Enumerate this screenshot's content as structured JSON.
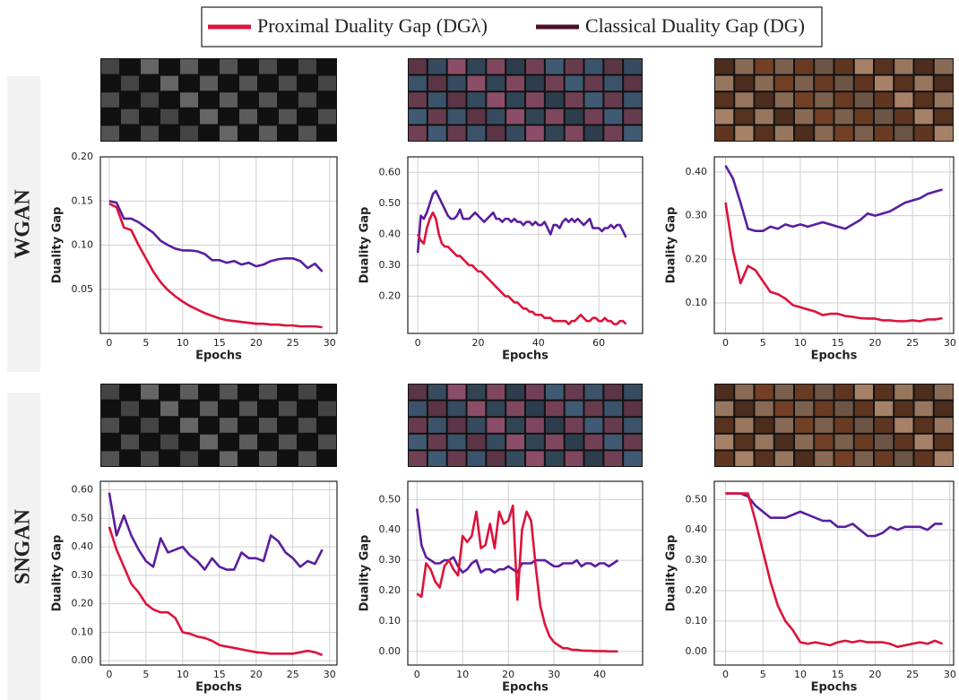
{
  "legend": [
    {
      "label": "Proximal Duality Gap (DGλ)",
      "color": "#dc143c"
    },
    {
      "label": "Classical Duality Gap (DG)",
      "color": "#4a0d2a"
    }
  ],
  "rows": [
    "WGAN",
    "SNGAN"
  ],
  "chart_data": [
    {
      "type": "line",
      "x_label": "Epochs",
      "y_label": "Duality Gap",
      "grid": true,
      "x": [
        0,
        1,
        2,
        3,
        4,
        5,
        6,
        7,
        8,
        9,
        10,
        11,
        12,
        13,
        14,
        15,
        16,
        17,
        18,
        19,
        20,
        21,
        22,
        23,
        24,
        25,
        26,
        27,
        28,
        29
      ],
      "xlim": [
        -1.2,
        31
      ],
      "xticks": [
        0,
        5,
        10,
        15,
        20,
        25,
        30
      ],
      "ylim": [
        0,
        0.2
      ],
      "yticks": [
        {
          "value": 0.05,
          "label": "0.05"
        },
        {
          "value": 0.1,
          "label": "0.10"
        },
        {
          "value": 0.15,
          "label": "0.15"
        },
        {
          "value": 0.2,
          "label": "0.20"
        }
      ],
      "series": [
        {
          "color": "#dc143c",
          "values": [
            0.147,
            0.143,
            0.12,
            0.117,
            0.1,
            0.085,
            0.07,
            0.058,
            0.049,
            0.042,
            0.036,
            0.031,
            0.027,
            0.023,
            0.02,
            0.017,
            0.015,
            0.014,
            0.013,
            0.012,
            0.011,
            0.011,
            0.01,
            0.01,
            0.009,
            0.009,
            0.008,
            0.008,
            0.008,
            0.007
          ]
        },
        {
          "color": "#5a1e9e",
          "values": [
            0.15,
            0.148,
            0.13,
            0.13,
            0.126,
            0.12,
            0.114,
            0.105,
            0.1,
            0.096,
            0.094,
            0.094,
            0.093,
            0.09,
            0.083,
            0.083,
            0.08,
            0.082,
            0.078,
            0.08,
            0.076,
            0.078,
            0.082,
            0.084,
            0.085,
            0.085,
            0.082,
            0.074,
            0.079,
            0.07
          ]
        }
      ]
    },
    {
      "type": "line",
      "x_label": "Epochs",
      "y_label": "Duality Gap",
      "grid": true,
      "x": [
        0,
        1,
        2,
        3,
        4,
        5,
        6,
        7,
        8,
        9,
        10,
        11,
        12,
        13,
        14,
        15,
        16,
        17,
        18,
        19,
        20,
        21,
        22,
        23,
        24,
        25,
        26,
        27,
        28,
        29,
        30,
        31,
        32,
        33,
        34,
        35,
        36,
        37,
        38,
        39,
        40,
        41,
        42,
        43,
        44,
        45,
        46,
        47,
        48,
        49,
        50,
        51,
        52,
        53,
        54,
        55,
        56,
        57,
        58,
        59,
        60,
        61,
        62,
        63,
        64,
        65,
        66,
        67,
        68,
        69
      ],
      "xlim": [
        -3.3,
        74.5
      ],
      "xticks": [
        0,
        20,
        40,
        60
      ],
      "ylim": [
        0.08,
        0.65
      ],
      "yticks": [
        {
          "value": 0.2,
          "label": "0.20"
        },
        {
          "value": 0.3,
          "label": "0.30"
        },
        {
          "value": 0.4,
          "label": "0.40"
        },
        {
          "value": 0.5,
          "label": "0.50"
        },
        {
          "value": 0.6,
          "label": "0.60"
        }
      ],
      "series": [
        {
          "color": "#dc143c",
          "values": [
            0.4,
            0.38,
            0.37,
            0.42,
            0.45,
            0.47,
            0.45,
            0.4,
            0.37,
            0.36,
            0.36,
            0.35,
            0.34,
            0.33,
            0.33,
            0.32,
            0.31,
            0.3,
            0.3,
            0.29,
            0.28,
            0.28,
            0.27,
            0.26,
            0.25,
            0.24,
            0.23,
            0.22,
            0.21,
            0.2,
            0.2,
            0.19,
            0.18,
            0.18,
            0.17,
            0.16,
            0.16,
            0.15,
            0.15,
            0.14,
            0.14,
            0.14,
            0.13,
            0.13,
            0.13,
            0.12,
            0.12,
            0.12,
            0.12,
            0.12,
            0.11,
            0.12,
            0.12,
            0.13,
            0.14,
            0.13,
            0.12,
            0.12,
            0.13,
            0.13,
            0.12,
            0.12,
            0.13,
            0.12,
            0.12,
            0.11,
            0.11,
            0.12,
            0.12,
            0.11
          ]
        },
        {
          "color": "#5a1e9e",
          "values": [
            0.34,
            0.46,
            0.45,
            0.47,
            0.5,
            0.53,
            0.54,
            0.52,
            0.5,
            0.48,
            0.46,
            0.45,
            0.45,
            0.46,
            0.48,
            0.45,
            0.45,
            0.45,
            0.46,
            0.47,
            0.46,
            0.45,
            0.44,
            0.45,
            0.46,
            0.47,
            0.45,
            0.45,
            0.44,
            0.45,
            0.45,
            0.44,
            0.45,
            0.44,
            0.44,
            0.43,
            0.44,
            0.44,
            0.43,
            0.44,
            0.43,
            0.43,
            0.44,
            0.42,
            0.4,
            0.43,
            0.43,
            0.42,
            0.44,
            0.45,
            0.44,
            0.45,
            0.44,
            0.45,
            0.44,
            0.43,
            0.44,
            0.45,
            0.42,
            0.42,
            0.42,
            0.41,
            0.42,
            0.42,
            0.43,
            0.42,
            0.43,
            0.43,
            0.41,
            0.39
          ]
        }
      ]
    },
    {
      "type": "line",
      "x_label": "Epochs",
      "y_label": "Duality Gap",
      "grid": true,
      "x": [
        0,
        1,
        2,
        3,
        4,
        5,
        6,
        7,
        8,
        9,
        10,
        11,
        12,
        13,
        14,
        15,
        16,
        17,
        18,
        19,
        20,
        21,
        22,
        23,
        24,
        25,
        26,
        27,
        28,
        29
      ],
      "xlim": [
        -1.5,
        30.5
      ],
      "xticks": [
        0,
        5,
        10,
        15,
        20,
        25,
        30
      ],
      "ylim": [
        0.03,
        0.435
      ],
      "yticks": [
        {
          "value": 0.1,
          "label": "0.10"
        },
        {
          "value": 0.2,
          "label": "0.20"
        },
        {
          "value": 0.3,
          "label": "0.30"
        },
        {
          "value": 0.4,
          "label": "0.40"
        }
      ],
      "series": [
        {
          "color": "#dc143c",
          "values": [
            0.33,
            0.22,
            0.145,
            0.185,
            0.175,
            0.15,
            0.125,
            0.12,
            0.11,
            0.095,
            0.09,
            0.085,
            0.08,
            0.072,
            0.075,
            0.075,
            0.07,
            0.068,
            0.065,
            0.064,
            0.064,
            0.06,
            0.06,
            0.058,
            0.058,
            0.06,
            0.058,
            0.062,
            0.062,
            0.065
          ]
        },
        {
          "color": "#5a1e9e",
          "values": [
            0.415,
            0.385,
            0.33,
            0.27,
            0.265,
            0.265,
            0.275,
            0.27,
            0.28,
            0.275,
            0.28,
            0.275,
            0.28,
            0.285,
            0.28,
            0.275,
            0.27,
            0.28,
            0.29,
            0.305,
            0.3,
            0.305,
            0.31,
            0.32,
            0.33,
            0.335,
            0.34,
            0.35,
            0.355,
            0.36
          ]
        }
      ]
    },
    {
      "type": "line",
      "x_label": "Epochs",
      "y_label": "Duality Gap",
      "grid": true,
      "x": [
        0,
        1,
        2,
        3,
        4,
        5,
        6,
        7,
        8,
        9,
        10,
        11,
        12,
        13,
        14,
        15,
        16,
        17,
        18,
        19,
        20,
        21,
        22,
        23,
        24,
        25,
        26,
        27,
        28,
        29
      ],
      "xlim": [
        -1.2,
        31
      ],
      "xticks": [
        0,
        5,
        10,
        15,
        20,
        25,
        30
      ],
      "ylim": [
        -0.015,
        0.63
      ],
      "yticks": [
        {
          "value": 0,
          "label": "0.00"
        },
        {
          "value": 0.1,
          "label": "0.10"
        },
        {
          "value": 0.2,
          "label": "0.20"
        },
        {
          "value": 0.3,
          "label": "0.30"
        },
        {
          "value": 0.4,
          "label": "0.40"
        },
        {
          "value": 0.5,
          "label": "0.50"
        },
        {
          "value": 0.6,
          "label": "0.60"
        }
      ],
      "series": [
        {
          "color": "#dc143c",
          "values": [
            0.47,
            0.39,
            0.33,
            0.27,
            0.24,
            0.2,
            0.18,
            0.17,
            0.17,
            0.15,
            0.1,
            0.095,
            0.085,
            0.08,
            0.07,
            0.055,
            0.05,
            0.045,
            0.04,
            0.035,
            0.03,
            0.028,
            0.025,
            0.025,
            0.025,
            0.025,
            0.03,
            0.035,
            0.03,
            0.02
          ]
        },
        {
          "color": "#5a1e9e",
          "values": [
            0.59,
            0.44,
            0.51,
            0.44,
            0.39,
            0.35,
            0.33,
            0.43,
            0.38,
            0.39,
            0.4,
            0.37,
            0.35,
            0.32,
            0.36,
            0.33,
            0.32,
            0.32,
            0.38,
            0.36,
            0.36,
            0.35,
            0.44,
            0.42,
            0.38,
            0.36,
            0.33,
            0.35,
            0.34,
            0.39
          ]
        }
      ]
    },
    {
      "type": "line",
      "x_label": "Epochs",
      "y_label": "Duality Gap",
      "grid": true,
      "x": [
        0,
        1,
        2,
        3,
        4,
        5,
        6,
        7,
        8,
        9,
        10,
        11,
        12,
        13,
        14,
        15,
        16,
        17,
        18,
        19,
        20,
        21,
        22,
        23,
        24,
        25,
        26,
        27,
        28,
        29,
        30,
        31,
        32,
        33,
        34,
        35,
        36,
        37,
        38,
        39,
        40,
        41,
        42,
        43,
        44
      ],
      "xlim": [
        -2,
        49.4
      ],
      "xticks": [
        0,
        10,
        20,
        30,
        40
      ],
      "ylim": [
        -0.045,
        0.56
      ],
      "yticks": [
        {
          "value": 0,
          "label": "0.00"
        },
        {
          "value": 0.1,
          "label": "0.10"
        },
        {
          "value": 0.2,
          "label": "0.20"
        },
        {
          "value": 0.3,
          "label": "0.30"
        },
        {
          "value": 0.4,
          "label": "0.40"
        },
        {
          "value": 0.5,
          "label": "0.50"
        }
      ],
      "series": [
        {
          "color": "#dc143c",
          "values": [
            0.19,
            0.18,
            0.29,
            0.27,
            0.23,
            0.21,
            0.28,
            0.3,
            0.27,
            0.25,
            0.38,
            0.36,
            0.38,
            0.46,
            0.34,
            0.35,
            0.42,
            0.34,
            0.46,
            0.42,
            0.43,
            0.48,
            0.17,
            0.4,
            0.46,
            0.43,
            0.28,
            0.15,
            0.09,
            0.05,
            0.03,
            0.02,
            0.01,
            0.01,
            0.005,
            0.005,
            0.003,
            0.002,
            0.002,
            0.001,
            0.001,
            0.001,
            0,
            0,
            0
          ]
        },
        {
          "color": "#5a1e9e",
          "values": [
            0.47,
            0.35,
            0.31,
            0.3,
            0.29,
            0.29,
            0.3,
            0.3,
            0.31,
            0.28,
            0.26,
            0.27,
            0.29,
            0.3,
            0.26,
            0.27,
            0.27,
            0.26,
            0.27,
            0.27,
            0.28,
            0.27,
            0.26,
            0.29,
            0.29,
            0.29,
            0.3,
            0.3,
            0.3,
            0.29,
            0.28,
            0.28,
            0.29,
            0.29,
            0.29,
            0.3,
            0.28,
            0.29,
            0.29,
            0.28,
            0.29,
            0.29,
            0.28,
            0.29,
            0.3
          ]
        }
      ]
    },
    {
      "type": "line",
      "x_label": "Epochs",
      "y_label": "Duality Gap",
      "grid": true,
      "x": [
        0,
        1,
        2,
        3,
        4,
        5,
        6,
        7,
        8,
        9,
        10,
        11,
        12,
        13,
        14,
        15,
        16,
        17,
        18,
        19,
        20,
        21,
        22,
        23,
        24,
        25,
        26,
        27,
        28,
        29
      ],
      "xlim": [
        -1.5,
        30.5
      ],
      "xticks": [
        0,
        5,
        10,
        15,
        20,
        25,
        30
      ],
      "ylim": [
        -0.045,
        0.56
      ],
      "yticks": [
        {
          "value": 0,
          "label": "0.00"
        },
        {
          "value": 0.1,
          "label": "0.10"
        },
        {
          "value": 0.2,
          "label": "0.20"
        },
        {
          "value": 0.3,
          "label": "0.30"
        },
        {
          "value": 0.4,
          "label": "0.40"
        },
        {
          "value": 0.5,
          "label": "0.50"
        }
      ],
      "series": [
        {
          "color": "#dc143c",
          "values": [
            0.52,
            0.52,
            0.52,
            0.52,
            0.43,
            0.33,
            0.23,
            0.15,
            0.1,
            0.07,
            0.03,
            0.025,
            0.03,
            0.025,
            0.02,
            0.03,
            0.035,
            0.03,
            0.035,
            0.03,
            0.03,
            0.03,
            0.025,
            0.015,
            0.02,
            0.025,
            0.03,
            0.025,
            0.035,
            0.025
          ]
        },
        {
          "color": "#5a1e9e",
          "values": [
            0.52,
            0.52,
            0.52,
            0.51,
            0.48,
            0.46,
            0.44,
            0.44,
            0.44,
            0.45,
            0.46,
            0.45,
            0.44,
            0.43,
            0.43,
            0.41,
            0.41,
            0.42,
            0.4,
            0.38,
            0.38,
            0.39,
            0.41,
            0.4,
            0.41,
            0.41,
            0.41,
            0.4,
            0.42,
            0.42
          ]
        }
      ]
    }
  ]
}
